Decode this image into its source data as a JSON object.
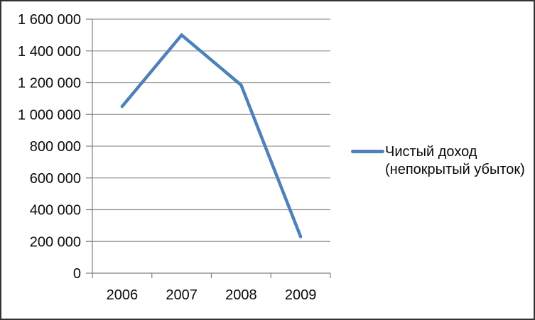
{
  "window": {
    "background": "#ffffff",
    "border_color": "#333333"
  },
  "chart_data": {
    "type": "line",
    "title": "",
    "xlabel": "",
    "ylabel": "",
    "categories": [
      "2006",
      "2007",
      "2008",
      "2009"
    ],
    "series": [
      {
        "name": "Чистый доход (непокрытый убыток)",
        "values": [
          1050000,
          1500000,
          1185000,
          230000
        ],
        "color": "#4E80BC"
      }
    ],
    "ylim": [
      0,
      1600000
    ],
    "ytick_step": 200000,
    "ytick_labels": [
      "0",
      "200 000",
      "400 000",
      "600 000",
      "800 000",
      "1 000 000",
      "1 200 000",
      "1 400 000",
      "1 600 000"
    ],
    "grid": true,
    "legend_position": "right",
    "gridline_color": "#979797",
    "axis_color": "#7F7F7F",
    "text_color": "#0a0a0a",
    "line_width": 4.5
  }
}
